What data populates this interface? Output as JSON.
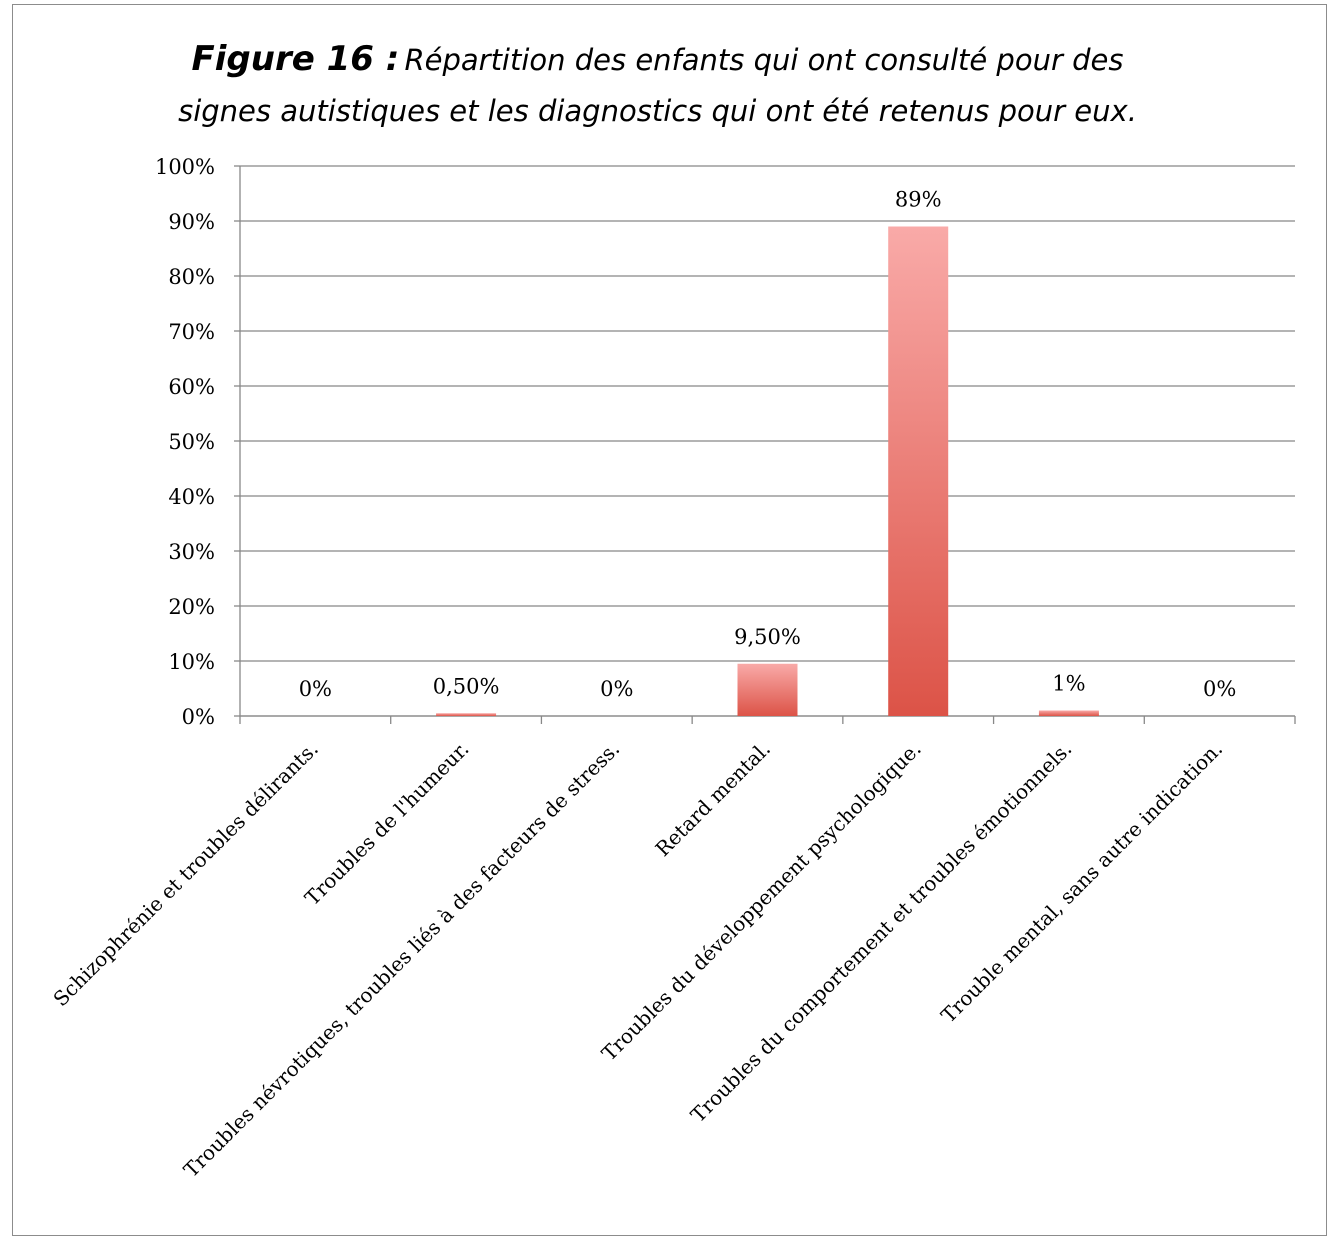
{
  "title": {
    "figure": "Figure 16 :",
    "line1": "Répartition des enfants qui ont consulté pour des",
    "line2": "signes autistiques et les diagnostics qui ont été retenus pour eux."
  },
  "chart_data": {
    "type": "bar",
    "categories": [
      "Schizophrénie et troubles délirants.",
      "Troubles de l'humeur.",
      "Troubles névrotiques, troubles liés à des facteurs de stress.",
      "Retard mental.",
      "Troubles du développement psychologique.",
      "Troubles du comportement et troubles émotionnels.",
      "Trouble mental, sans autre indication."
    ],
    "values": [
      0,
      0.5,
      0,
      9.5,
      89,
      1,
      0
    ],
    "data_labels": [
      "0%",
      "0,50%",
      "0%",
      "9,50%",
      "89%",
      "1%",
      "0%"
    ],
    "ylim": [
      0,
      100
    ],
    "yticks": [
      "0%",
      "10%",
      "20%",
      "30%",
      "40%",
      "50%",
      "60%",
      "70%",
      "80%",
      "90%",
      "100%"
    ],
    "grid": true,
    "legend": "none",
    "colors": {
      "bar_top": "#f9aaa8",
      "bar_bottom": "#dc5347",
      "grid": "#888888"
    }
  }
}
